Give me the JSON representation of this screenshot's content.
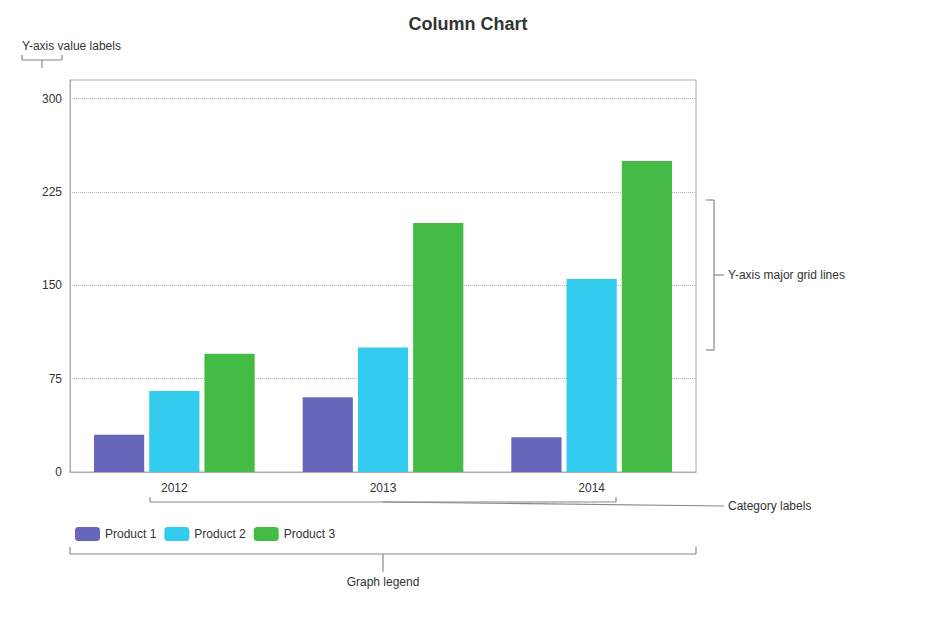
{
  "chart_data": {
    "type": "bar",
    "title": "Column Chart",
    "categories": [
      "2012",
      "2013",
      "2014"
    ],
    "series": [
      {
        "name": "Product 1",
        "color": "#6666bb",
        "values": [
          30,
          60,
          28
        ]
      },
      {
        "name": "Product 2",
        "color": "#33ccee",
        "values": [
          65,
          100,
          155
        ]
      },
      {
        "name": "Product 3",
        "color": "#44bb44",
        "values": [
          95,
          200,
          250
        ]
      }
    ],
    "ylim": [
      0,
      315
    ],
    "yticks": [
      0,
      75,
      150,
      225,
      300
    ],
    "grid": true,
    "legend": "lower left",
    "annotations": [
      "Y-axis value labels",
      "Y-axis major grid lines",
      "Category labels",
      "Graph legend"
    ]
  }
}
